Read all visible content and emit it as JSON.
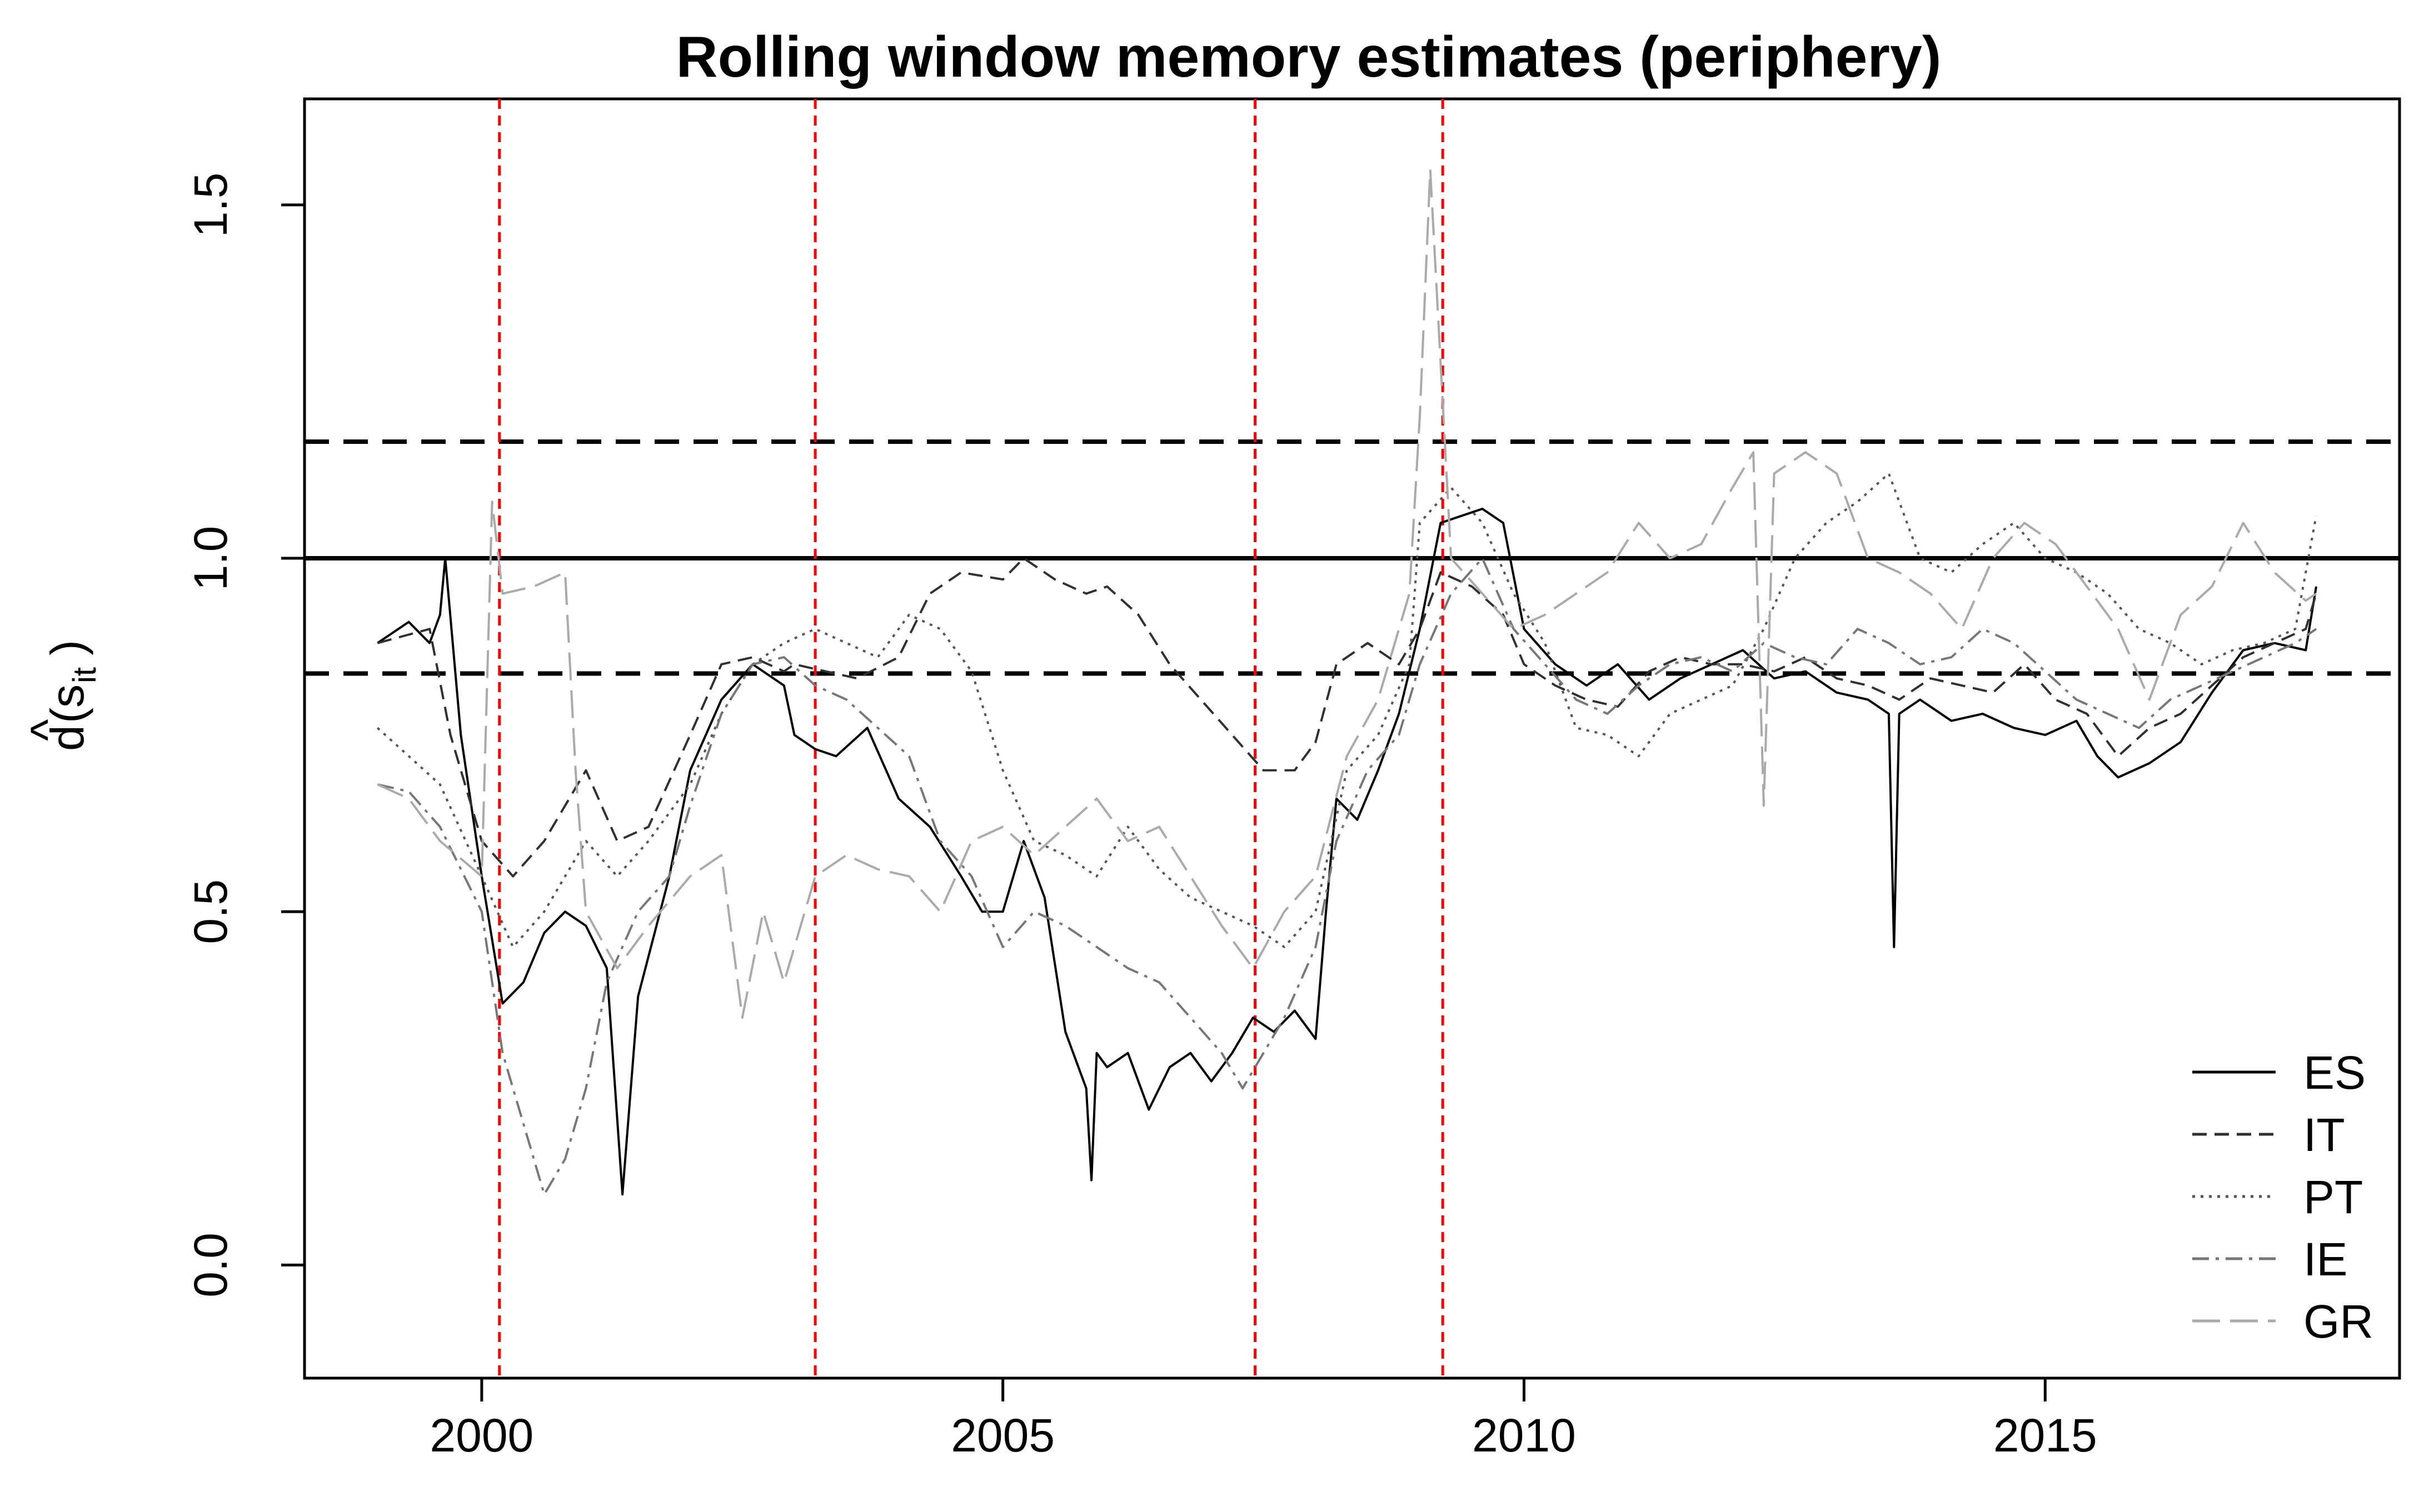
{
  "chart_data": {
    "type": "line",
    "title": "Rolling window memory estimates (periphery)",
    "xlabel": "",
    "ylabel_base": "d",
    "ylabel_hat": "^",
    "ylabel_arg": "s",
    "ylabel_sub": "it",
    "xlim": [
      1998.3,
      2018.4
    ],
    "ylim": [
      -0.16,
      1.65
    ],
    "x_ticks": [
      2000,
      2005,
      2010,
      2015
    ],
    "y_ticks": [
      0.0,
      0.5,
      1.0,
      1.5
    ],
    "x_tick_labels": [
      "2000",
      "2005",
      "2010",
      "2015"
    ],
    "y_tick_labels": [
      "0.0",
      "0.5",
      "1.0",
      "1.5"
    ],
    "reference_lines": {
      "solid": 1.0,
      "dashed": [
        1.165,
        0.837
      ]
    },
    "event_lines_x": [
      2000.17,
      2003.2,
      2007.42,
      2009.22
    ],
    "legend": {
      "position": "bottom-right",
      "entries": [
        "ES",
        "IT",
        "PT",
        "IE",
        "GR"
      ]
    },
    "series": [
      {
        "name": "ES",
        "color": "#000000",
        "style": "solid",
        "x": [
          1999.0,
          1999.3,
          1999.5,
          1999.6,
          1999.65,
          1999.8,
          2000.0,
          2000.2,
          2000.4,
          2000.6,
          2000.8,
          2001.0,
          2001.2,
          2001.35,
          2001.5,
          2001.8,
          2002.0,
          2002.3,
          2002.6,
          2002.9,
          2003.0,
          2003.2,
          2003.4,
          2003.7,
          2004.0,
          2004.3,
          2004.6,
          2004.8,
          2005.0,
          2005.2,
          2005.4,
          2005.6,
          2005.8,
          2005.85,
          2005.9,
          2006.0,
          2006.2,
          2006.4,
          2006.6,
          2006.8,
          2007.0,
          2007.2,
          2007.4,
          2007.6,
          2007.8,
          2008.0,
          2008.1,
          2008.2,
          2008.4,
          2008.6,
          2008.8,
          2009.0,
          2009.2,
          2009.4,
          2009.6,
          2009.8,
          2010.0,
          2010.3,
          2010.6,
          2010.9,
          2011.2,
          2011.5,
          2011.8,
          2012.1,
          2012.4,
          2012.7,
          2013.0,
          2013.3,
          2013.5,
          2013.55,
          2013.6,
          2013.8,
          2014.1,
          2014.4,
          2014.7,
          2015.0,
          2015.3,
          2015.5,
          2015.7,
          2016.0,
          2016.3,
          2016.6,
          2016.9,
          2017.2,
          2017.5,
          2017.6
        ],
        "y": [
          0.88,
          0.91,
          0.88,
          0.92,
          1.0,
          0.75,
          0.55,
          0.37,
          0.4,
          0.47,
          0.5,
          0.48,
          0.42,
          0.1,
          0.38,
          0.55,
          0.7,
          0.8,
          0.85,
          0.82,
          0.75,
          0.73,
          0.72,
          0.76,
          0.66,
          0.62,
          0.55,
          0.5,
          0.5,
          0.6,
          0.52,
          0.33,
          0.25,
          0.12,
          0.3,
          0.28,
          0.3,
          0.22,
          0.28,
          0.3,
          0.26,
          0.3,
          0.35,
          0.33,
          0.36,
          0.32,
          0.5,
          0.66,
          0.63,
          0.7,
          0.78,
          0.9,
          1.05,
          1.06,
          1.07,
          1.05,
          0.9,
          0.85,
          0.82,
          0.85,
          0.8,
          0.83,
          0.85,
          0.87,
          0.83,
          0.84,
          0.81,
          0.8,
          0.78,
          0.45,
          0.78,
          0.8,
          0.77,
          0.78,
          0.76,
          0.75,
          0.77,
          0.72,
          0.69,
          0.71,
          0.74,
          0.81,
          0.87,
          0.88,
          0.87,
          0.96
        ]
      },
      {
        "name": "IT",
        "color": "#303030",
        "style": "dashed",
        "x": [
          1999.0,
          1999.5,
          1999.7,
          2000.0,
          2000.3,
          2000.6,
          2001.0,
          2001.3,
          2001.6,
          2002.0,
          2002.3,
          2002.6,
          2002.9,
          2003.0,
          2003.3,
          2003.6,
          2004.0,
          2004.3,
          2004.6,
          2005.0,
          2005.2,
          2005.5,
          2005.8,
          2006.0,
          2006.3,
          2006.6,
          2006.9,
          2007.2,
          2007.5,
          2007.8,
          2008.0,
          2008.2,
          2008.5,
          2008.8,
          2009.0,
          2009.2,
          2009.5,
          2009.8,
          2010.0,
          2010.3,
          2010.6,
          2010.9,
          2011.2,
          2011.5,
          2011.8,
          2012.1,
          2012.4,
          2012.7,
          2013.0,
          2013.3,
          2013.6,
          2013.9,
          2014.2,
          2014.5,
          2014.8,
          2015.1,
          2015.4,
          2015.7,
          2016.0,
          2016.3,
          2016.6,
          2016.9,
          2017.2,
          2017.5,
          2017.6
        ],
        "y": [
          0.88,
          0.9,
          0.75,
          0.6,
          0.55,
          0.6,
          0.7,
          0.6,
          0.62,
          0.75,
          0.85,
          0.86,
          0.84,
          0.85,
          0.84,
          0.83,
          0.86,
          0.95,
          0.98,
          0.97,
          1.0,
          0.97,
          0.95,
          0.96,
          0.92,
          0.85,
          0.8,
          0.75,
          0.7,
          0.7,
          0.74,
          0.85,
          0.88,
          0.85,
          0.9,
          0.98,
          0.96,
          0.92,
          0.85,
          0.82,
          0.8,
          0.79,
          0.84,
          0.86,
          0.85,
          0.85,
          0.84,
          0.86,
          0.83,
          0.82,
          0.8,
          0.83,
          0.82,
          0.81,
          0.85,
          0.8,
          0.78,
          0.72,
          0.76,
          0.78,
          0.82,
          0.86,
          0.88,
          0.9,
          0.95
        ]
      },
      {
        "name": "PT",
        "color": "#555555",
        "style": "dotted",
        "x": [
          1999.0,
          1999.3,
          1999.6,
          2000.0,
          2000.3,
          2000.6,
          2001.0,
          2001.3,
          2001.6,
          2002.0,
          2002.3,
          2002.6,
          2002.9,
          2003.2,
          2003.5,
          2003.8,
          2004.1,
          2004.4,
          2004.7,
          2005.0,
          2005.3,
          2005.6,
          2005.9,
          2006.2,
          2006.5,
          2006.8,
          2007.1,
          2007.4,
          2007.7,
          2008.0,
          2008.3,
          2008.6,
          2008.9,
          2009.0,
          2009.3,
          2009.6,
          2009.9,
          2010.2,
          2010.5,
          2010.8,
          2011.1,
          2011.4,
          2011.7,
          2012.0,
          2012.3,
          2012.6,
          2012.9,
          2013.2,
          2013.5,
          2013.8,
          2014.1,
          2014.4,
          2014.7,
          2015.0,
          2015.3,
          2015.6,
          2015.9,
          2016.2,
          2016.5,
          2016.8,
          2017.1,
          2017.4,
          2017.6
        ],
        "y": [
          0.76,
          0.72,
          0.68,
          0.55,
          0.45,
          0.5,
          0.6,
          0.55,
          0.6,
          0.68,
          0.78,
          0.85,
          0.88,
          0.9,
          0.88,
          0.86,
          0.92,
          0.9,
          0.84,
          0.7,
          0.6,
          0.58,
          0.55,
          0.62,
          0.56,
          0.52,
          0.5,
          0.48,
          0.45,
          0.5,
          0.7,
          0.75,
          0.85,
          1.05,
          1.1,
          1.05,
          0.95,
          0.88,
          0.76,
          0.75,
          0.72,
          0.78,
          0.8,
          0.82,
          0.9,
          1.0,
          1.05,
          1.08,
          1.12,
          1.0,
          0.98,
          1.02,
          1.05,
          1.0,
          0.98,
          0.95,
          0.9,
          0.88,
          0.85,
          0.87,
          0.88,
          0.9,
          1.06
        ]
      },
      {
        "name": "IE",
        "color": "#777777",
        "style": "dashdot",
        "x": [
          1999.0,
          1999.3,
          1999.6,
          2000.0,
          2000.2,
          2000.4,
          2000.6,
          2000.8,
          2001.0,
          2001.2,
          2001.5,
          2001.8,
          2002.0,
          2002.3,
          2002.6,
          2002.9,
          2003.2,
          2003.5,
          2003.8,
          2004.1,
          2004.4,
          2004.7,
          2005.0,
          2005.3,
          2005.6,
          2005.9,
          2006.2,
          2006.5,
          2006.8,
          2007.1,
          2007.3,
          2007.5,
          2007.7,
          2008.0,
          2008.2,
          2008.5,
          2008.8,
          2009.0,
          2009.3,
          2009.6,
          2009.9,
          2010.2,
          2010.5,
          2010.8,
          2011.1,
          2011.4,
          2011.7,
          2012.0,
          2012.3,
          2012.6,
          2012.9,
          2013.2,
          2013.5,
          2013.8,
          2014.1,
          2014.4,
          2014.7,
          2015.0,
          2015.3,
          2015.6,
          2015.9,
          2016.2,
          2016.5,
          2016.8,
          2017.1,
          2017.4,
          2017.6
        ],
        "y": [
          0.68,
          0.67,
          0.62,
          0.5,
          0.3,
          0.2,
          0.1,
          0.15,
          0.25,
          0.4,
          0.5,
          0.55,
          0.65,
          0.78,
          0.85,
          0.86,
          0.82,
          0.8,
          0.76,
          0.72,
          0.6,
          0.55,
          0.45,
          0.5,
          0.48,
          0.45,
          0.42,
          0.4,
          0.35,
          0.3,
          0.25,
          0.3,
          0.35,
          0.45,
          0.6,
          0.7,
          0.75,
          0.85,
          0.95,
          1.0,
          0.9,
          0.85,
          0.8,
          0.78,
          0.82,
          0.85,
          0.86,
          0.84,
          0.88,
          0.86,
          0.85,
          0.9,
          0.88,
          0.85,
          0.86,
          0.9,
          0.88,
          0.84,
          0.8,
          0.78,
          0.76,
          0.8,
          0.82,
          0.84,
          0.86,
          0.88,
          0.9
        ]
      },
      {
        "name": "GR",
        "color": "#aaaaaa",
        "style": "longdash",
        "x": [
          1999.0,
          1999.3,
          1999.6,
          2000.0,
          2000.1,
          2000.2,
          2000.5,
          2000.8,
          2000.9,
          2001.0,
          2001.3,
          2001.6,
          2002.0,
          2002.3,
          2002.5,
          2002.7,
          2002.9,
          2003.2,
          2003.5,
          2003.8,
          2004.1,
          2004.4,
          2004.7,
          2005.0,
          2005.3,
          2005.6,
          2005.9,
          2006.2,
          2006.5,
          2006.8,
          2007.1,
          2007.4,
          2007.7,
          2008.0,
          2008.3,
          2008.6,
          2008.9,
          2009.0,
          2009.1,
          2009.3,
          2009.6,
          2009.9,
          2010.2,
          2010.5,
          2010.8,
          2011.1,
          2011.4,
          2011.7,
          2012.0,
          2012.2,
          2012.3,
          2012.4,
          2012.7,
          2013.0,
          2013.3,
          2013.6,
          2013.9,
          2014.2,
          2014.5,
          2014.8,
          2015.1,
          2015.4,
          2015.7,
          2016.0,
          2016.3,
          2016.6,
          2016.9,
          2017.2,
          2017.5,
          2017.6
        ],
        "y": [
          0.68,
          0.66,
          0.6,
          0.55,
          1.08,
          0.95,
          0.96,
          0.98,
          0.7,
          0.5,
          0.42,
          0.48,
          0.55,
          0.58,
          0.35,
          0.5,
          0.4,
          0.55,
          0.58,
          0.56,
          0.55,
          0.5,
          0.6,
          0.62,
          0.58,
          0.62,
          0.66,
          0.6,
          0.62,
          0.55,
          0.48,
          0.42,
          0.5,
          0.55,
          0.72,
          0.8,
          0.95,
          1.2,
          1.55,
          1.0,
          0.95,
          0.9,
          0.92,
          0.95,
          0.98,
          1.05,
          1.0,
          1.02,
          1.1,
          1.15,
          0.65,
          1.12,
          1.15,
          1.12,
          1.0,
          0.98,
          0.95,
          0.9,
          1.0,
          1.05,
          1.02,
          0.96,
          0.9,
          0.8,
          0.92,
          0.96,
          1.05,
          0.98,
          0.94,
          0.95
        ]
      }
    ]
  }
}
